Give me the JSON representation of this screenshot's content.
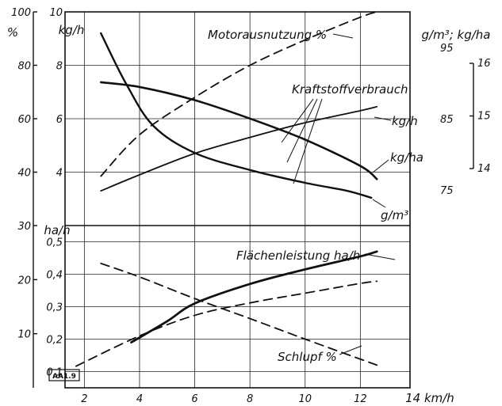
{
  "chart_data": {
    "type": "line",
    "x_axis": {
      "unit": "km/h",
      "ticks": [
        2,
        4,
        6,
        8,
        10,
        12,
        14
      ],
      "range": [
        1.3,
        13.8
      ]
    },
    "axes": {
      "percent_upper": {
        "unit": "%",
        "ticks": [
          40,
          60,
          80,
          100
        ],
        "range": [
          20,
          100
        ]
      },
      "kgh_upper": {
        "unit": "kg/h",
        "ticks": [
          4,
          6,
          8,
          10
        ],
        "range": [
          2,
          10
        ]
      },
      "gm3_right": {
        "unit": "g/m³; kg/ha",
        "ticks": [
          75,
          85,
          95
        ],
        "range": [
          70,
          100
        ]
      },
      "kgha_right": {
        "ticks": [
          14,
          15,
          16
        ],
        "range": [
          14,
          16
        ]
      },
      "percent_lower": {
        "ticks": [
          10,
          20,
          30
        ],
        "range": [
          0,
          30
        ]
      },
      "hah_lower": {
        "unit": "ha/h",
        "ticks": [
          "0,1",
          "0,2",
          "0,3",
          "0,4",
          "0,5"
        ],
        "tick_values": [
          0.1,
          0.2,
          0.3,
          0.4,
          0.5
        ],
        "range": [
          0.05,
          0.55
        ]
      }
    },
    "group_labels": [
      {
        "text": "Kraftstoffverbrauch"
      }
    ],
    "series": [
      {
        "name": "Motorausnutzung %",
        "axis": "percent_upper",
        "style": "dashed",
        "x": [
          2.6,
          4,
          6,
          8,
          10,
          12,
          12.6
        ],
        "y": [
          38.5,
          54,
          68,
          80,
          89.5,
          98,
          100
        ]
      },
      {
        "name": "kg/h",
        "axis": "kgh_upper",
        "style": "solid",
        "x": [
          2.6,
          4,
          6,
          8,
          10,
          12,
          12.6
        ],
        "y": [
          3.3,
          3.9,
          4.7,
          5.3,
          5.85,
          6.3,
          6.45
        ]
      },
      {
        "name": "kg/ha",
        "axis": "kgha_right",
        "style": "solid",
        "x": [
          2.6,
          4,
          6,
          8,
          10,
          12,
          12.6
        ],
        "y": [
          15.64,
          15.55,
          15.3,
          14.95,
          14.55,
          14.05,
          13.8
        ]
      },
      {
        "name": "g/m³",
        "axis": "gm3_right",
        "style": "solid",
        "x": [
          2.6,
          3.5,
          4.5,
          6,
          8,
          10,
          11.5,
          12.4
        ],
        "y": [
          97,
          90,
          84,
          80.2,
          77.8,
          76,
          74.9,
          73.9
        ]
      },
      {
        "name": "Flächenleistung ha/h",
        "axis": "hah_lower",
        "style": "solid",
        "x": [
          3.7,
          5,
          6,
          8,
          10,
          12,
          12.6
        ],
        "y": [
          0.19,
          0.255,
          0.31,
          0.37,
          0.415,
          0.455,
          0.47
        ]
      },
      {
        "name": "Schlupf %",
        "axis": "percent_lower",
        "style": "dashed",
        "x": [
          1.7,
          4,
          6,
          8,
          10,
          12,
          12.6
        ],
        "y": [
          4,
          9.6,
          13.4,
          15.7,
          17.5,
          19.3,
          19.7
        ]
      },
      {
        "name": "Schlupf %",
        "axis": "percent_lower",
        "style": "dashed",
        "x": [
          2.6,
          4,
          6,
          8,
          10,
          12,
          12.6
        ],
        "y": [
          23,
          20.5,
          16.5,
          12.8,
          9,
          5.3,
          4.2
        ]
      }
    ]
  },
  "figure_tag": "AA1.9"
}
